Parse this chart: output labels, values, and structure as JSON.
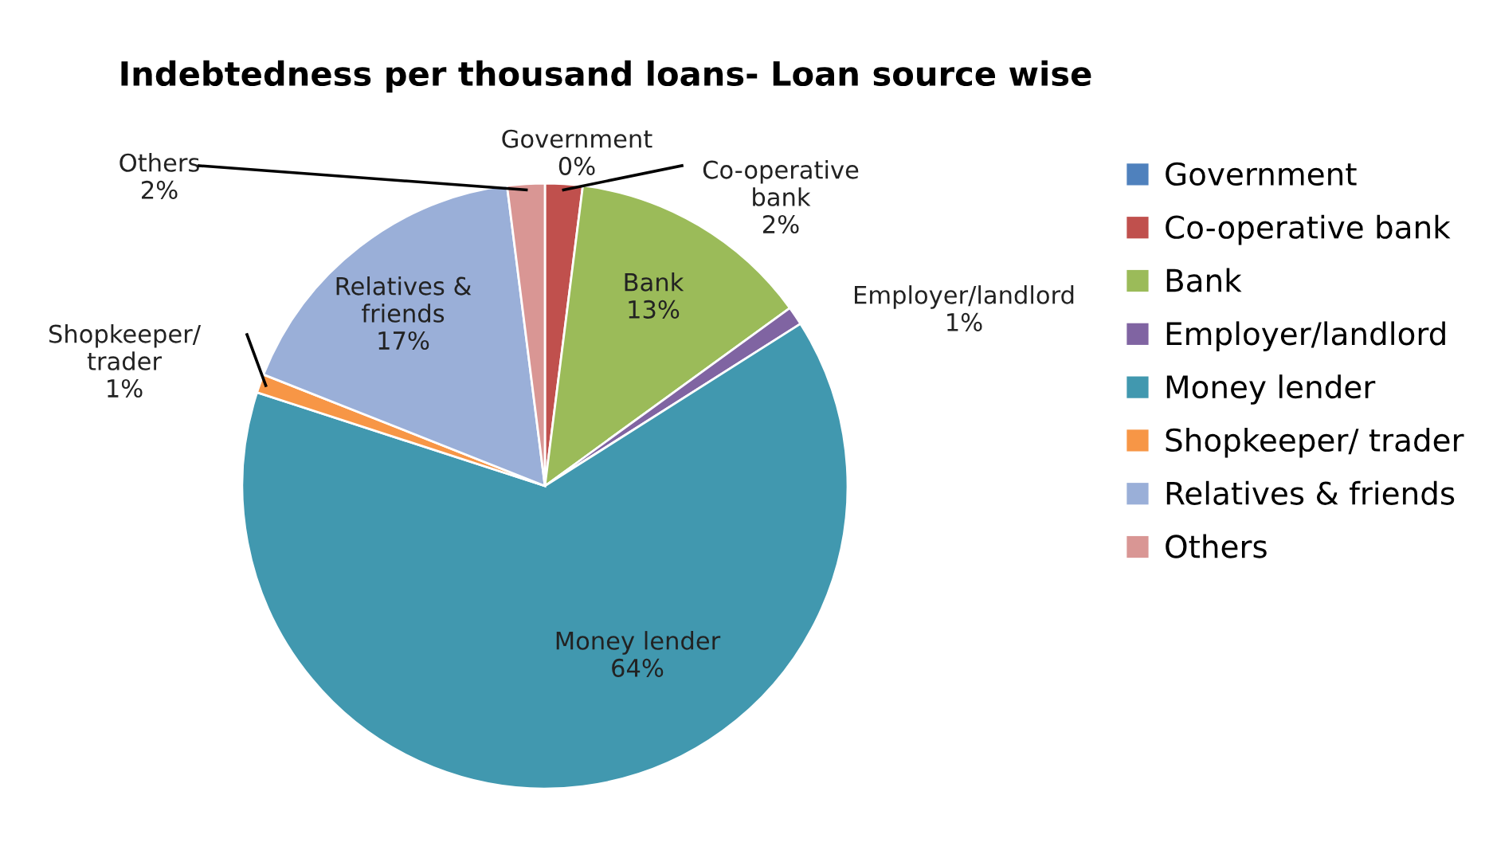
{
  "chart_data": {
    "type": "pie",
    "title": "Indebtedness per thousand loans- Loan source wise",
    "categories": [
      "Government",
      "Co-operative bank",
      "Bank",
      "Employer/landlord",
      "Money lender",
      "Shopkeeper/ trader",
      "Relatives & friends",
      "Others"
    ],
    "values": [
      0,
      2,
      13,
      1,
      64,
      1,
      17,
      2
    ],
    "colors": [
      "#4f81bd",
      "#c0504d",
      "#9bbb59",
      "#8064a2",
      "#4198af",
      "#f79646",
      "#9aafd8",
      "#d99694"
    ],
    "value_labels": [
      "Government\n0%",
      "Co-operative\nbank\n2%",
      "Bank\n13%",
      "Employer/landlord\n1%",
      "Money lender\n64%",
      "Shopkeeper/\ntrader\n1%",
      "Relatives &\nfriends\n17%",
      "Others\n2%"
    ],
    "legend": "right"
  }
}
